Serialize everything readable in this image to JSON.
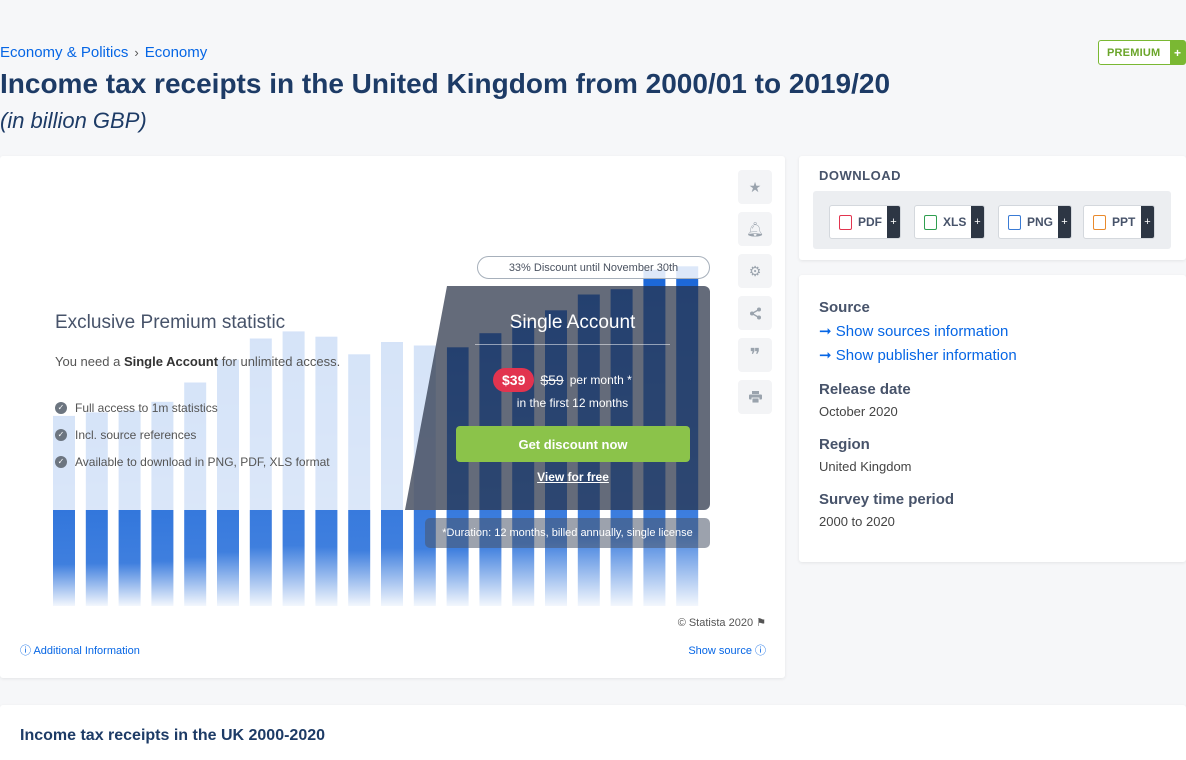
{
  "breadcrumb": {
    "first": "Economy & Politics",
    "separator": "›",
    "second": "Economy"
  },
  "premium": {
    "label": "PREMIUM",
    "plus": "+"
  },
  "page": {
    "title": "Income tax receipts in the United Kingdom from 2000/01 to 2019/20",
    "subtitle": "(in billion GBP)"
  },
  "tools": [
    "star-icon",
    "bell-icon",
    "gear-icon",
    "share-icon",
    "quote-icon",
    "print-icon"
  ],
  "chart_data": {
    "type": "bar",
    "values": [
      108,
      110,
      111,
      116,
      127,
      140,
      152,
      156,
      153,
      143,
      150,
      148,
      147,
      155,
      162,
      168,
      177,
      180,
      191,
      193
    ],
    "color": "#0f5fd6",
    "ylim": [
      0,
      200
    ]
  },
  "paywall": {
    "discount_pill": "33% Discount until November 30th",
    "title": "Exclusive Premium statistic",
    "need_prefix": "You need a ",
    "need_bold": "Single Account",
    "need_suffix": " for unlimited access.",
    "features": [
      "Full access to 1m statistics",
      "Incl. source references",
      "Available to download in PNG, PDF, XLS format"
    ],
    "account_title": "Single Account",
    "price_new": "$39",
    "price_old": "$59",
    "price_suffix": "per month *",
    "price_note": "in the first 12 months",
    "cta": "Get discount now",
    "free_link": "View for free",
    "duration": "*Duration: 12 months, billed annually, single license"
  },
  "footer": {
    "copyright": "© Statista 2020",
    "additional": "Additional Information",
    "show_source": "Show source"
  },
  "download": {
    "heading": "DOWNLOAD",
    "buttons": [
      {
        "label": "PDF",
        "plus": "+",
        "color": "#e2344f"
      },
      {
        "label": "XLS",
        "plus": "+",
        "color": "#2e9e4f"
      },
      {
        "label": "PNG",
        "plus": "+",
        "color": "#3a7bd5"
      },
      {
        "label": "PPT",
        "plus": "+",
        "color": "#e98a2c"
      }
    ]
  },
  "meta": {
    "source_heading": "Source",
    "sources_link": "Show sources information",
    "publisher_link": "Show publisher information",
    "release_heading": "Release date",
    "release_value": "October 2020",
    "region_heading": "Region",
    "region_value": "United Kingdom",
    "period_heading": "Survey time period",
    "period_value": "2000 to 2020"
  },
  "bottom": {
    "title": "Income tax receipts in the UK 2000-2020"
  }
}
